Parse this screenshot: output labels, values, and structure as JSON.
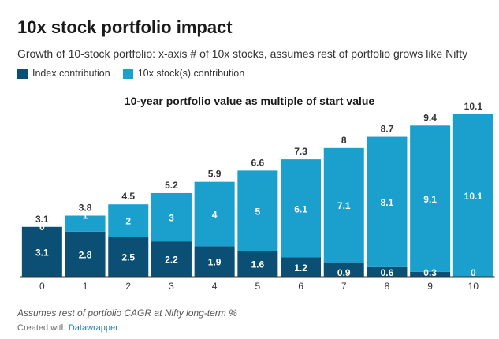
{
  "header": {
    "title": "10x stock portfolio impact",
    "subtitle": "Growth of 10-stock portfolio: x-axis # of 10x stocks, assumes rest of portfolio grows like Nifty"
  },
  "legend": {
    "items": [
      {
        "label": "Index contribution",
        "color": "#0b4f75"
      },
      {
        "label": "10x stock(s) contribution",
        "color": "#1ba0cd"
      }
    ]
  },
  "chart_data": {
    "type": "bar",
    "stacked": true,
    "title": "10-year portfolio value as multiple of start value",
    "categories": [
      "0",
      "1",
      "2",
      "3",
      "4",
      "5",
      "6",
      "7",
      "8",
      "9",
      "10"
    ],
    "series": [
      {
        "name": "Index contribution",
        "color": "#0b4f75",
        "values": [
          3.1,
          2.8,
          2.5,
          2.2,
          1.9,
          1.6,
          1.2,
          0.9,
          0.6,
          0.3,
          0
        ]
      },
      {
        "name": "10x stock(s) contribution",
        "color": "#1ba0cd",
        "values": [
          0,
          1,
          2,
          3,
          4,
          5,
          6.1,
          7.1,
          8.1,
          9.1,
          10.1
        ]
      }
    ],
    "totals": [
      3.1,
      3.8,
      4.5,
      5.2,
      5.9,
      6.6,
      7.3,
      8,
      8.7,
      9.4,
      10.1
    ],
    "index_labels": [
      "3.1",
      "2.8",
      "2.5",
      "2.2",
      "1.9",
      "1.6",
      "1.2",
      "0.9",
      "0.6",
      "0.3",
      "0"
    ],
    "stock_labels": [
      "0",
      "1",
      "2",
      "3",
      "4",
      "5",
      "6.1",
      "7.1",
      "8.1",
      "9.1",
      "10.1"
    ],
    "total_labels": [
      "3.1",
      "3.8",
      "4.5",
      "5.2",
      "5.9",
      "6.6",
      "7.3",
      "8",
      "8.7",
      "9.4",
      "10.1"
    ],
    "ylim": [
      0,
      10.1
    ],
    "xlabel": "",
    "ylabel": ""
  },
  "footer": {
    "note": "Assumes rest of portfolio CAGR at Nifty long-term %",
    "credit_prefix": "Created with",
    "credit_link": "Datawrapper"
  }
}
